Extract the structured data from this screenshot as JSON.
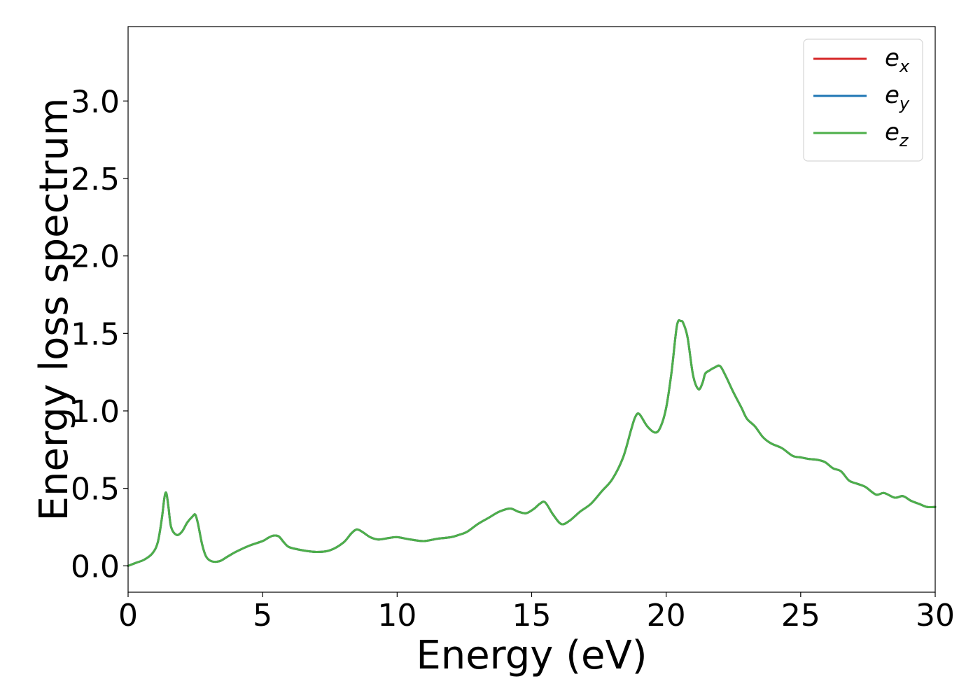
{
  "chart_data": {
    "type": "line",
    "xlabel": "Energy (eV)",
    "ylabel": "Energy loss spectrum",
    "xlim": [
      0,
      30
    ],
    "ylim": [
      -0.17,
      3.48
    ],
    "xticks": [
      0,
      5,
      10,
      15,
      20,
      25,
      30
    ],
    "xtick_labels": [
      "0",
      "5",
      "10",
      "15",
      "20",
      "25",
      "30"
    ],
    "yticks": [
      0.0,
      0.5,
      1.0,
      1.5,
      2.0,
      2.5,
      3.0
    ],
    "ytick_labels": [
      "0.0",
      "0.5",
      "1.0",
      "1.5",
      "2.0",
      "2.5",
      "3.0"
    ],
    "grid": false,
    "legend_position": "top-right",
    "x": [
      0,
      0.3,
      0.6,
      0.9,
      1.1,
      1.25,
      1.35,
      1.42,
      1.5,
      1.6,
      1.8,
      2.0,
      2.2,
      2.4,
      2.5,
      2.6,
      2.75,
      2.9,
      3.1,
      3.4,
      3.7,
      4.0,
      4.5,
      5.0,
      5.2,
      5.4,
      5.6,
      5.8,
      6.0,
      6.5,
      7.0,
      7.5,
      8.0,
      8.3,
      8.5,
      8.7,
      9.0,
      9.3,
      9.7,
      10.0,
      10.5,
      11.0,
      11.5,
      12.0,
      12.3,
      12.6,
      13.0,
      13.4,
      13.8,
      14.2,
      14.5,
      14.8,
      15.1,
      15.3,
      15.5,
      15.8,
      16.1,
      16.4,
      16.8,
      17.2,
      17.6,
      18.0,
      18.4,
      18.7,
      18.85,
      19.0,
      19.3,
      19.6,
      19.8,
      20.0,
      20.2,
      20.4,
      20.55,
      20.65,
      20.8,
      21.0,
      21.2,
      21.35,
      21.45,
      21.6,
      21.8,
      22.0,
      22.2,
      22.5,
      22.8,
      23.0,
      23.3,
      23.6,
      23.9,
      24.3,
      24.7,
      25.0,
      25.3,
      25.6,
      25.9,
      26.2,
      26.5,
      26.8,
      27.1,
      27.4,
      27.8,
      28.1,
      28.5,
      28.8,
      29.1,
      29.4,
      29.7,
      30.0
    ],
    "series": [
      {
        "name": "e_x",
        "label_base": "e",
        "label_sub": "x",
        "color": "#d62728",
        "values": [
          0.0,
          0.02,
          0.04,
          0.08,
          0.15,
          0.3,
          0.44,
          0.47,
          0.38,
          0.25,
          0.2,
          0.22,
          0.28,
          0.32,
          0.33,
          0.27,
          0.14,
          0.06,
          0.03,
          0.03,
          0.06,
          0.09,
          0.13,
          0.16,
          0.18,
          0.195,
          0.19,
          0.15,
          0.12,
          0.1,
          0.09,
          0.1,
          0.15,
          0.21,
          0.235,
          0.22,
          0.185,
          0.17,
          0.18,
          0.185,
          0.17,
          0.16,
          0.175,
          0.185,
          0.2,
          0.22,
          0.27,
          0.31,
          0.35,
          0.37,
          0.35,
          0.34,
          0.37,
          0.4,
          0.41,
          0.33,
          0.27,
          0.29,
          0.35,
          0.4,
          0.48,
          0.56,
          0.7,
          0.88,
          0.96,
          0.98,
          0.9,
          0.86,
          0.9,
          1.02,
          1.25,
          1.55,
          1.58,
          1.56,
          1.47,
          1.23,
          1.14,
          1.18,
          1.24,
          1.26,
          1.28,
          1.29,
          1.23,
          1.12,
          1.02,
          0.95,
          0.9,
          0.83,
          0.79,
          0.76,
          0.71,
          0.7,
          0.69,
          0.685,
          0.67,
          0.63,
          0.61,
          0.55,
          0.53,
          0.51,
          0.46,
          0.47,
          0.44,
          0.45,
          0.42,
          0.4,
          0.38,
          0.38
        ]
      },
      {
        "name": "e_y",
        "label_base": "e",
        "label_sub": "y",
        "color": "#1f77b4",
        "values": [
          0.0,
          0.02,
          0.04,
          0.08,
          0.15,
          0.3,
          0.44,
          0.47,
          0.38,
          0.25,
          0.2,
          0.22,
          0.28,
          0.32,
          0.33,
          0.27,
          0.14,
          0.06,
          0.03,
          0.03,
          0.06,
          0.09,
          0.13,
          0.16,
          0.18,
          0.195,
          0.19,
          0.15,
          0.12,
          0.1,
          0.09,
          0.1,
          0.15,
          0.21,
          0.235,
          0.22,
          0.185,
          0.17,
          0.18,
          0.185,
          0.17,
          0.16,
          0.175,
          0.185,
          0.2,
          0.22,
          0.27,
          0.31,
          0.35,
          0.37,
          0.35,
          0.34,
          0.37,
          0.4,
          0.41,
          0.33,
          0.27,
          0.29,
          0.35,
          0.4,
          0.48,
          0.56,
          0.7,
          0.88,
          0.96,
          0.98,
          0.9,
          0.86,
          0.9,
          1.02,
          1.25,
          1.55,
          1.58,
          1.56,
          1.47,
          1.23,
          1.14,
          1.18,
          1.24,
          1.26,
          1.28,
          1.29,
          1.23,
          1.12,
          1.02,
          0.95,
          0.9,
          0.83,
          0.79,
          0.76,
          0.71,
          0.7,
          0.69,
          0.685,
          0.67,
          0.63,
          0.61,
          0.55,
          0.53,
          0.51,
          0.46,
          0.47,
          0.44,
          0.45,
          0.42,
          0.4,
          0.38,
          0.38
        ]
      },
      {
        "name": "e_z",
        "label_base": "e",
        "label_sub": "z",
        "color": "#4daf4a",
        "values": [
          0.0,
          0.02,
          0.04,
          0.08,
          0.15,
          0.3,
          0.44,
          0.47,
          0.38,
          0.25,
          0.2,
          0.22,
          0.28,
          0.32,
          0.33,
          0.27,
          0.14,
          0.06,
          0.03,
          0.03,
          0.06,
          0.09,
          0.13,
          0.16,
          0.18,
          0.195,
          0.19,
          0.15,
          0.12,
          0.1,
          0.09,
          0.1,
          0.15,
          0.21,
          0.235,
          0.22,
          0.185,
          0.17,
          0.18,
          0.185,
          0.17,
          0.16,
          0.175,
          0.185,
          0.2,
          0.22,
          0.27,
          0.31,
          0.35,
          0.37,
          0.35,
          0.34,
          0.37,
          0.4,
          0.41,
          0.33,
          0.27,
          0.29,
          0.35,
          0.4,
          0.48,
          0.56,
          0.7,
          0.88,
          0.96,
          0.98,
          0.9,
          0.86,
          0.9,
          1.02,
          1.25,
          1.55,
          1.58,
          1.56,
          1.47,
          1.23,
          1.14,
          1.18,
          1.24,
          1.26,
          1.28,
          1.29,
          1.23,
          1.12,
          1.02,
          0.95,
          0.9,
          0.83,
          0.79,
          0.76,
          0.71,
          0.7,
          0.69,
          0.685,
          0.67,
          0.63,
          0.61,
          0.55,
          0.53,
          0.51,
          0.46,
          0.47,
          0.44,
          0.45,
          0.42,
          0.4,
          0.38,
          0.38
        ]
      }
    ]
  }
}
